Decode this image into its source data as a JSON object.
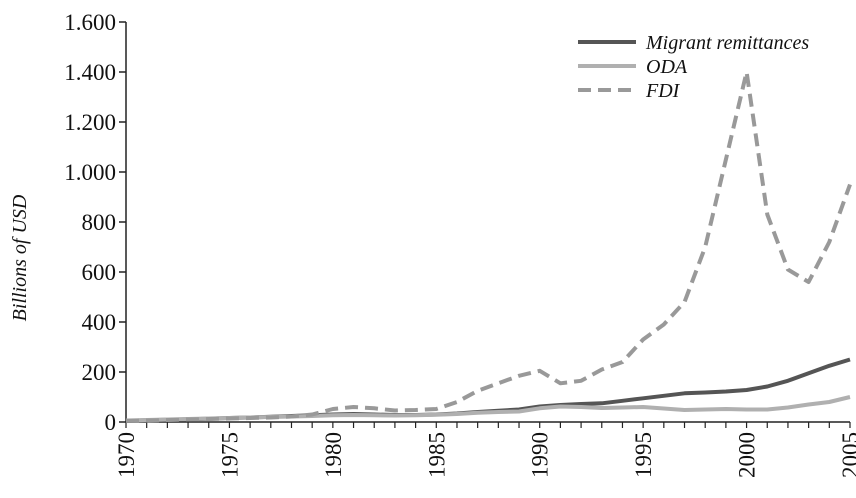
{
  "chart_data": {
    "type": "line",
    "title": "",
    "xlabel": "",
    "ylabel": "Billions of USD",
    "xlim": [
      1970,
      2005
    ],
    "ylim": [
      0,
      1600
    ],
    "grid": false,
    "legend_position": "top-right",
    "y_ticks": [
      {
        "value": 0,
        "label": "0"
      },
      {
        "value": 200,
        "label": "200"
      },
      {
        "value": 400,
        "label": "400"
      },
      {
        "value": 600,
        "label": "600"
      },
      {
        "value": 800,
        "label": "800"
      },
      {
        "value": 1000,
        "label": "1.000"
      },
      {
        "value": 1200,
        "label": "1.200"
      },
      {
        "value": 1400,
        "label": "1.400"
      },
      {
        "value": 1600,
        "label": "1.600"
      }
    ],
    "x_ticks": [
      {
        "value": 1970,
        "label": "1970"
      },
      {
        "value": 1975,
        "label": "1975"
      },
      {
        "value": 1980,
        "label": "1980"
      },
      {
        "value": 1985,
        "label": "1985"
      },
      {
        "value": 1990,
        "label": "1990"
      },
      {
        "value": 1995,
        "label": "1995"
      },
      {
        "value": 2000,
        "label": "2000"
      },
      {
        "value": 2005,
        "label": "2005"
      }
    ],
    "x": [
      1970,
      1971,
      1972,
      1973,
      1974,
      1975,
      1976,
      1977,
      1978,
      1979,
      1980,
      1981,
      1982,
      1983,
      1984,
      1985,
      1986,
      1987,
      1988,
      1989,
      1990,
      1991,
      1992,
      1993,
      1994,
      1995,
      1996,
      1997,
      1998,
      1999,
      2000,
      2001,
      2002,
      2003,
      2004,
      2005
    ],
    "series": [
      {
        "name": "Migrant remittances",
        "color": "#555555",
        "dash": "solid",
        "values": [
          5,
          7,
          9,
          11,
          13,
          16,
          18,
          21,
          24,
          27,
          30,
          32,
          30,
          28,
          28,
          30,
          34,
          40,
          45,
          50,
          62,
          68,
          72,
          75,
          85,
          95,
          105,
          115,
          118,
          122,
          128,
          142,
          165,
          195,
          225,
          250
        ]
      },
      {
        "name": "ODA",
        "color": "#b0b0b0",
        "dash": "solid",
        "values": [
          6,
          8,
          10,
          12,
          14,
          16,
          18,
          20,
          22,
          24,
          27,
          28,
          27,
          26,
          27,
          29,
          32,
          37,
          40,
          42,
          55,
          62,
          60,
          56,
          58,
          60,
          54,
          48,
          50,
          52,
          50,
          50,
          58,
          70,
          80,
          100
        ]
      },
      {
        "name": "FDI",
        "color": "#999999",
        "dash": "dashed",
        "values": [
          5,
          6,
          8,
          10,
          12,
          14,
          16,
          18,
          22,
          30,
          52,
          60,
          55,
          46,
          48,
          52,
          80,
          125,
          155,
          185,
          205,
          155,
          165,
          210,
          240,
          330,
          390,
          480,
          700,
          1050,
          1400,
          830,
          610,
          560,
          720,
          950
        ]
      }
    ]
  }
}
